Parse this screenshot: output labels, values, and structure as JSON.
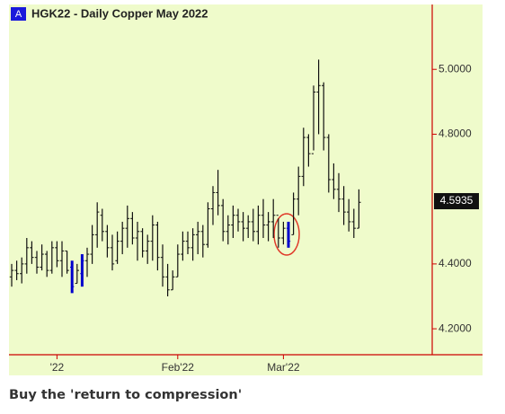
{
  "chart_data": {
    "type": "ohlc",
    "badge": "A",
    "title": "HGK22 - Daily  Copper May 2022",
    "caption": "Buy the 'return to compression'",
    "categories": [
      null,
      null,
      null,
      null,
      null,
      null,
      null,
      null,
      null,
      "'22",
      null,
      null,
      null,
      null,
      null,
      null,
      null,
      null,
      null,
      null,
      null,
      null,
      null,
      null,
      null,
      null,
      null,
      null,
      null,
      null,
      null,
      null,
      null,
      "Feb'22",
      null,
      null,
      null,
      null,
      null,
      null,
      null,
      null,
      null,
      null,
      null,
      null,
      null,
      null,
      null,
      null,
      null,
      null,
      null,
      null,
      "Mar'22",
      null,
      null,
      null,
      null,
      null,
      null,
      null,
      null,
      null,
      null,
      null,
      null,
      null,
      null,
      null
    ],
    "open": [
      4.36,
      4.38,
      4.37,
      4.4,
      4.45,
      4.42,
      4.39,
      4.43,
      4.38,
      4.45,
      4.41,
      4.44,
      4.39,
      4.34,
      4.37,
      4.41,
      4.43,
      4.49,
      4.55,
      4.5,
      4.45,
      4.41,
      4.47,
      4.51,
      4.54,
      4.48,
      4.5,
      4.44,
      4.47,
      4.52,
      4.42,
      4.36,
      4.32,
      4.36,
      4.43,
      4.47,
      4.45,
      4.49,
      4.5,
      4.46,
      4.57,
      4.62,
      4.58,
      4.5,
      4.52,
      4.55,
      4.53,
      4.51,
      4.53,
      4.5,
      4.55,
      4.52,
      4.53,
      4.55,
      4.48,
      4.51,
      4.49,
      4.6,
      4.67,
      4.79,
      4.74,
      4.93,
      4.95,
      4.79,
      4.66,
      4.63,
      4.6,
      4.56,
      4.53,
      4.51
    ],
    "high": [
      4.4,
      4.41,
      4.42,
      4.48,
      4.47,
      4.44,
      4.46,
      4.44,
      4.47,
      4.47,
      4.47,
      4.44,
      4.41,
      4.4,
      4.43,
      4.45,
      4.52,
      4.59,
      4.57,
      4.52,
      4.49,
      4.5,
      4.53,
      4.58,
      4.56,
      4.53,
      4.51,
      4.49,
      4.55,
      4.53,
      4.46,
      4.4,
      4.38,
      4.46,
      4.5,
      4.5,
      4.51,
      4.53,
      4.52,
      4.59,
      4.64,
      4.69,
      4.6,
      4.55,
      4.58,
      4.57,
      4.56,
      4.55,
      4.57,
      4.58,
      4.6,
      4.56,
      4.6,
      4.54,
      4.53,
      4.53,
      4.62,
      4.7,
      4.82,
      4.8,
      4.95,
      5.03,
      4.96,
      4.8,
      4.71,
      4.68,
      4.64,
      4.6,
      4.57,
      4.63
    ],
    "low": [
      4.33,
      4.35,
      4.34,
      4.37,
      4.4,
      4.37,
      4.38,
      4.36,
      4.37,
      4.39,
      4.36,
      4.37,
      4.31,
      4.34,
      4.33,
      4.36,
      4.4,
      4.45,
      4.47,
      4.42,
      4.38,
      4.4,
      4.43,
      4.45,
      4.46,
      4.41,
      4.42,
      4.4,
      4.41,
      4.38,
      4.33,
      4.3,
      4.32,
      4.36,
      4.41,
      4.43,
      4.41,
      4.43,
      4.42,
      4.45,
      4.52,
      4.55,
      4.47,
      4.46,
      4.48,
      4.5,
      4.47,
      4.48,
      4.47,
      4.46,
      4.48,
      4.47,
      4.48,
      4.45,
      4.46,
      4.45,
      4.49,
      4.55,
      4.64,
      4.7,
      4.75,
      4.8,
      4.75,
      4.62,
      4.6,
      4.56,
      4.52,
      4.5,
      4.48,
      4.51
    ],
    "close": [
      4.38,
      4.37,
      4.4,
      4.45,
      4.42,
      4.39,
      4.43,
      4.38,
      4.45,
      4.41,
      4.44,
      4.38,
      4.33,
      4.38,
      4.41,
      4.43,
      4.49,
      4.56,
      4.5,
      4.45,
      4.4,
      4.47,
      4.51,
      4.54,
      4.48,
      4.5,
      4.44,
      4.47,
      4.52,
      4.42,
      4.36,
      4.32,
      4.36,
      4.43,
      4.47,
      4.45,
      4.49,
      4.5,
      4.46,
      4.57,
      4.62,
      4.58,
      4.5,
      4.52,
      4.55,
      4.53,
      4.51,
      4.53,
      4.5,
      4.55,
      4.52,
      4.53,
      4.55,
      4.48,
      4.51,
      4.47,
      4.6,
      4.67,
      4.79,
      4.74,
      4.93,
      4.95,
      4.79,
      4.66,
      4.63,
      4.6,
      4.56,
      4.53,
      4.51,
      4.59
    ],
    "bar_colors": [
      "#111",
      "#111",
      "#111",
      "#111",
      "#111",
      "#111",
      "#111",
      "#111",
      "#111",
      "#111",
      "#111",
      "#111",
      "#0000cc",
      "#111",
      "#0000cc",
      "#111",
      "#111",
      "#111",
      "#111",
      "#111",
      "#111",
      "#111",
      "#111",
      "#111",
      "#111",
      "#111",
      "#111",
      "#111",
      "#111",
      "#111",
      "#111",
      "#111",
      "#111",
      "#111",
      "#111",
      "#111",
      "#111",
      "#111",
      "#111",
      "#111",
      "#111",
      "#111",
      "#111",
      "#111",
      "#111",
      "#111",
      "#111",
      "#111",
      "#111",
      "#111",
      "#111",
      "#111",
      "#111",
      "#111",
      "#111",
      "#0000cc",
      "#111",
      "#111",
      "#111",
      "#111",
      "#111",
      "#111",
      "#111",
      "#111",
      "#111",
      "#111",
      "#111",
      "#111",
      "#111",
      "#111"
    ],
    "last_price": {
      "value": 4.5935,
      "label": "4.5935"
    },
    "ylim": [
      4.12,
      5.2
    ],
    "yticks": [
      {
        "value": 4.2,
        "label": "4.2000"
      },
      {
        "value": 4.4,
        "label": "4.4000"
      },
      {
        "value": 4.8,
        "label": "4.8000"
      },
      {
        "value": 5.0,
        "label": "5.0000"
      }
    ]
  }
}
